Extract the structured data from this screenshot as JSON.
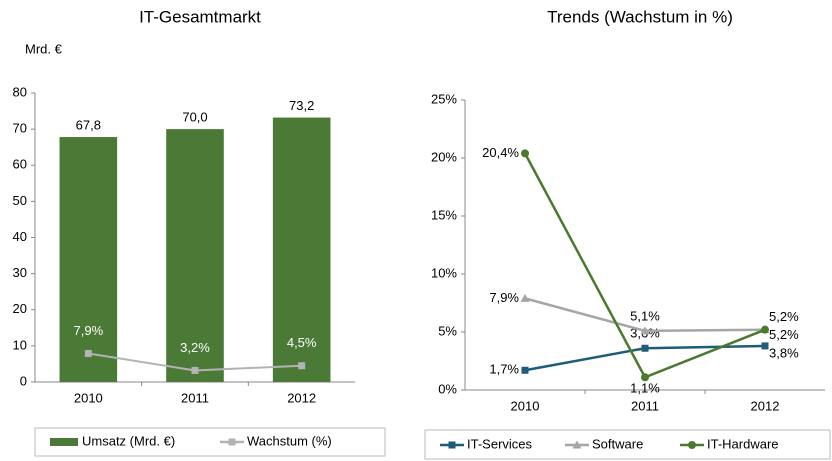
{
  "chart_data": [
    {
      "type": "bar",
      "title": "IT-Gesamtmarkt",
      "unit_label": "Mrd. €",
      "categories": [
        "2010",
        "2011",
        "2012"
      ],
      "series": [
        {
          "name": "Umsatz (Mrd. €)",
          "type": "bar",
          "color": "#4a7a35",
          "values": [
            67.8,
            70.0,
            73.2
          ],
          "value_labels": [
            "67,8",
            "70,0",
            "73,2"
          ]
        },
        {
          "name": "Wachstum (%)",
          "type": "line",
          "color": "#b3b3b3",
          "marker": "square",
          "values": [
            7.9,
            3.2,
            4.5
          ],
          "value_labels": [
            "7,9%",
            "3,2%",
            "4,5%"
          ]
        }
      ],
      "ylim": [
        0,
        80
      ],
      "yticks": [
        0,
        10,
        20,
        30,
        40,
        50,
        60,
        70,
        80
      ],
      "grid": false,
      "legend": "bottom"
    },
    {
      "type": "line",
      "title": "Trends (Wachstum in %)",
      "categories": [
        "2010",
        "2011",
        "2012"
      ],
      "series": [
        {
          "name": "IT-Services",
          "color": "#1f5c7a",
          "marker": "square",
          "values": [
            1.7,
            3.6,
            3.8
          ],
          "value_labels": [
            "1,7%",
            "3,6%",
            "3,8%"
          ]
        },
        {
          "name": "Software",
          "color": "#a6a6a6",
          "marker": "triangle",
          "values": [
            7.9,
            5.1,
            5.2
          ],
          "value_labels": [
            "7,9%",
            "5,1%",
            "5,2%"
          ]
        },
        {
          "name": "IT-Hardware",
          "color": "#4a7a2d",
          "marker": "circle",
          "values": [
            20.4,
            1.1,
            5.2
          ],
          "value_labels": [
            "20,4%",
            "1,1%",
            "5,2%"
          ]
        }
      ],
      "ylim": [
        0,
        25
      ],
      "yticks": [
        {
          "value": 0,
          "label": "0%"
        },
        {
          "value": 5,
          "label": "5%"
        },
        {
          "value": 10,
          "label": "10%"
        },
        {
          "value": 15,
          "label": "15%"
        },
        {
          "value": 20,
          "label": "20%"
        },
        {
          "value": 25,
          "label": "25%"
        }
      ],
      "grid": false,
      "legend": "bottom"
    }
  ]
}
